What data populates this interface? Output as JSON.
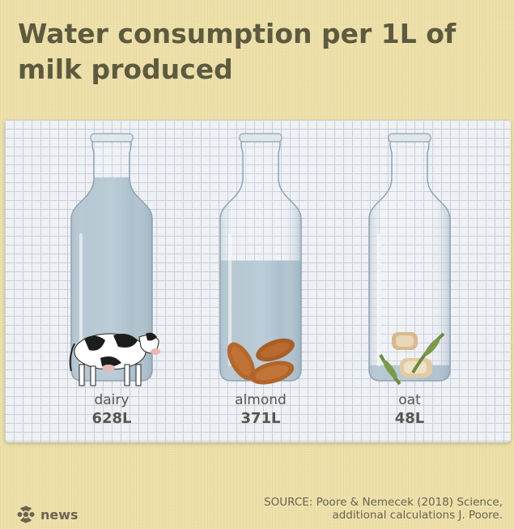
{
  "title": "Water consumption per 1L of milk produced",
  "chart_data": {
    "type": "bar",
    "categories": [
      "dairy",
      "almond",
      "oat"
    ],
    "values": [
      628,
      371,
      48
    ],
    "value_labels": [
      "628L",
      "371L",
      "48L"
    ],
    "unit": "L"
  },
  "source": {
    "line1": "SOURCE: Poore & Nemecek (2018) Science,",
    "line2": "additional calculations J. Poore."
  },
  "brand": "news",
  "colors": {
    "background": "#ecdfa7",
    "water": "#a8bfcc",
    "title_text": "#5d5a3f"
  },
  "icons": [
    "cow-icon",
    "almond-icon",
    "oat-icon",
    "cbc-gem-icon"
  ]
}
